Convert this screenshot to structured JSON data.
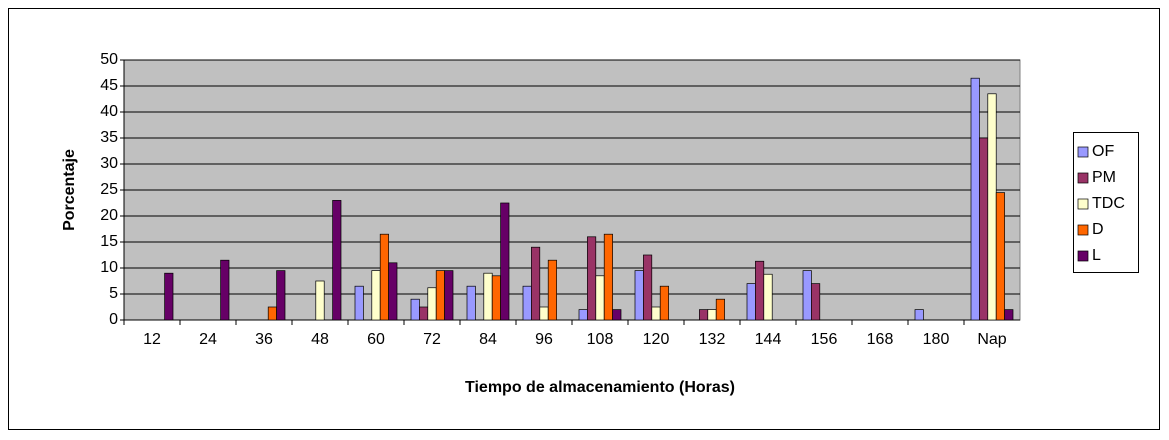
{
  "chart_data": {
    "type": "bar",
    "x_label": "Tiempo de almacenamiento (Horas)",
    "y_label": "Porcentaje",
    "categories": [
      "12",
      "24",
      "36",
      "48",
      "60",
      "72",
      "84",
      "96",
      "108",
      "120",
      "132",
      "144",
      "156",
      "168",
      "180",
      "Nap"
    ],
    "series": [
      {
        "name": "OF",
        "color": "#9999ff",
        "values": [
          null,
          null,
          null,
          null,
          6.5,
          4,
          6.5,
          6.5,
          2,
          9.5,
          null,
          7,
          9.5,
          null,
          2,
          46.5
        ]
      },
      {
        "name": "PM",
        "color": "#993366",
        "values": [
          null,
          null,
          null,
          null,
          null,
          2.5,
          null,
          14,
          16,
          12.5,
          2,
          11.3,
          7,
          null,
          null,
          35
        ]
      },
      {
        "name": "TDC",
        "color": "#ffffcc",
        "values": [
          null,
          null,
          null,
          7.5,
          9.5,
          6.2,
          9,
          2.5,
          8.5,
          2.5,
          2,
          8.8,
          null,
          null,
          null,
          43.5
        ]
      },
      {
        "name": "D",
        "color": "#ff6600",
        "values": [
          null,
          null,
          2.5,
          null,
          16.5,
          9.5,
          8.5,
          11.5,
          16.5,
          6.5,
          4,
          null,
          null,
          null,
          null,
          24.5
        ]
      },
      {
        "name": "L",
        "color": "#660066",
        "values": [
          9,
          11.5,
          9.5,
          23,
          11,
          9.5,
          22.5,
          null,
          2,
          null,
          null,
          null,
          null,
          null,
          null,
          2
        ]
      }
    ],
    "ylim": [
      0,
      50
    ],
    "yticks": [
      0,
      5,
      10,
      15,
      20,
      25,
      30,
      35,
      40,
      45,
      50
    ],
    "grid": true,
    "legend": "right"
  }
}
